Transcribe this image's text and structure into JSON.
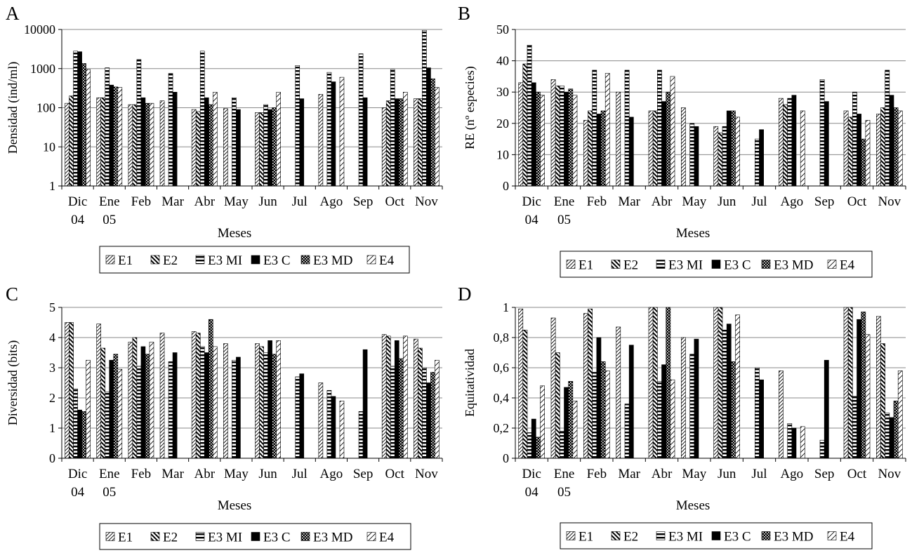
{
  "figure": {
    "legend_entries": [
      "E1",
      "E2",
      "E3 MI",
      "E3 C",
      "E3 MD",
      "E4"
    ],
    "months": [
      "Dic",
      "Ene",
      "Feb",
      "Mar",
      "Abr",
      "May",
      "Jun",
      "Jul",
      "Ago",
      "Sep",
      "Oct",
      "Nov"
    ],
    "month_sublabels": [
      "04",
      "05",
      "",
      "",
      "",
      "",
      "",
      "",
      "",
      "",
      "",
      ""
    ]
  },
  "chart_data": [
    {
      "panel": "A",
      "type": "bar",
      "ylabel": "Densidad (ind/ml)",
      "xlabel": "Meses",
      "yscale": "log",
      "ylim": [
        1,
        10000
      ],
      "yticks": [
        "1",
        "10",
        "100",
        "1000",
        "10000"
      ],
      "categories": [
        "Dic",
        "Ene",
        "Feb",
        "Mar",
        "Abr",
        "May",
        "Jun",
        "Jul",
        "Ago",
        "Sep",
        "Oct",
        "Nov"
      ],
      "grid": true,
      "legend_position": "bottom",
      "series": [
        {
          "name": "E1",
          "values": [
            130,
            180,
            120,
            150,
            90,
            95,
            75,
            null,
            220,
            null,
            100,
            170
          ]
        },
        {
          "name": "E2",
          "values": [
            200,
            180,
            120,
            null,
            80,
            null,
            75,
            null,
            null,
            null,
            150,
            170
          ]
        },
        {
          "name": "E3 MI",
          "values": [
            2800,
            1050,
            1700,
            750,
            2800,
            180,
            120,
            1200,
            800,
            2400,
            950,
            9500
          ]
        },
        {
          "name": "E3 C",
          "values": [
            2700,
            380,
            180,
            250,
            180,
            90,
            90,
            170,
            460,
            180,
            170,
            1050
          ]
        },
        {
          "name": "E3 MD",
          "values": [
            1350,
            340,
            130,
            null,
            120,
            null,
            100,
            null,
            null,
            null,
            170,
            550
          ]
        },
        {
          "name": "E4",
          "values": [
            950,
            330,
            130,
            null,
            250,
            null,
            250,
            null,
            600,
            null,
            250,
            330
          ]
        }
      ]
    },
    {
      "panel": "B",
      "type": "bar",
      "ylabel": "RE (nº especies)",
      "xlabel": "Meses",
      "ylim": [
        0,
        50
      ],
      "yticks": [
        "0",
        "10",
        "20",
        "30",
        "40",
        "50"
      ],
      "categories": [
        "Dic",
        "Ene",
        "Feb",
        "Mar",
        "Abr",
        "May",
        "Jun",
        "Jul",
        "Ago",
        "Sep",
        "Oct",
        "Nov"
      ],
      "grid": true,
      "legend_position": "bottom",
      "series": [
        {
          "name": "E1",
          "values": [
            33,
            34,
            21,
            30,
            24,
            25,
            19,
            null,
            28,
            null,
            24,
            23
          ]
        },
        {
          "name": "E2",
          "values": [
            39,
            32,
            24,
            null,
            24,
            null,
            17,
            null,
            26,
            null,
            22,
            25
          ]
        },
        {
          "name": "E3 MI",
          "values": [
            45,
            32,
            37,
            37,
            37,
            20,
            19,
            15,
            28,
            34,
            30,
            37
          ]
        },
        {
          "name": "E3 C",
          "values": [
            33,
            30,
            23,
            22,
            27,
            19,
            24,
            18,
            29,
            27,
            23,
            29
          ]
        },
        {
          "name": "E3 MD",
          "values": [
            30,
            31,
            24,
            null,
            30,
            null,
            24,
            null,
            null,
            null,
            15,
            25
          ]
        },
        {
          "name": "E4",
          "values": [
            29,
            29,
            36,
            null,
            35,
            null,
            22,
            null,
            24,
            null,
            21,
            24
          ]
        }
      ]
    },
    {
      "panel": "C",
      "type": "bar",
      "ylabel": "Diversidad (bits)",
      "xlabel": "Meses",
      "ylim": [
        0,
        5
      ],
      "yticks": [
        "0",
        "1",
        "2",
        "3",
        "4",
        "5"
      ],
      "categories": [
        "Dic",
        "Ene",
        "Feb",
        "Mar",
        "Abr",
        "May",
        "Jun",
        "Jul",
        "Ago",
        "Sep",
        "Oct",
        "Nov"
      ],
      "grid": true,
      "legend_position": "bottom",
      "series": [
        {
          "name": "E1",
          "values": [
            4.5,
            4.45,
            3.85,
            4.15,
            4.2,
            3.8,
            3.8,
            null,
            2.5,
            null,
            4.1,
            3.95
          ]
        },
        {
          "name": "E2",
          "values": [
            4.5,
            3.65,
            4.0,
            null,
            4.15,
            null,
            3.7,
            null,
            null,
            null,
            4.05,
            3.65
          ]
        },
        {
          "name": "E3 MI",
          "values": [
            2.3,
            2.2,
            3.05,
            3.2,
            3.7,
            3.25,
            3.5,
            2.7,
            2.25,
            1.55,
            3.05,
            3.0
          ]
        },
        {
          "name": "E3 C",
          "values": [
            1.6,
            3.25,
            3.7,
            3.5,
            3.5,
            3.35,
            3.9,
            2.8,
            2.05,
            3.6,
            3.9,
            2.5
          ]
        },
        {
          "name": "E3 MD",
          "values": [
            1.55,
            3.45,
            3.45,
            null,
            4.6,
            null,
            3.45,
            null,
            null,
            null,
            3.3,
            2.85
          ]
        },
        {
          "name": "E4",
          "values": [
            3.25,
            2.95,
            3.85,
            null,
            3.7,
            null,
            3.9,
            null,
            1.9,
            null,
            4.05,
            3.25
          ]
        }
      ]
    },
    {
      "panel": "D",
      "type": "bar",
      "ylabel": "Equitatividad",
      "xlabel": "Meses",
      "ylim": [
        0,
        1
      ],
      "yticks": [
        "0",
        "0,2",
        "0,4",
        "0,6",
        "0,8",
        "1"
      ],
      "categories": [
        "Dic",
        "Ene",
        "Feb",
        "Mar",
        "Abr",
        "May",
        "Jun",
        "Jul",
        "Ago",
        "Sep",
        "Oct",
        "Nov"
      ],
      "grid": true,
      "legend_position": "bottom",
      "series": [
        {
          "name": "E1",
          "values": [
            0.99,
            0.93,
            0.96,
            0.87,
            1.0,
            0.8,
            1.0,
            null,
            0.58,
            null,
            1.0,
            0.94
          ]
        },
        {
          "name": "E2",
          "values": [
            0.85,
            0.7,
            0.99,
            null,
            1.0,
            null,
            1.0,
            null,
            null,
            null,
            1.0,
            0.76
          ]
        },
        {
          "name": "E3 MI",
          "values": [
            0.17,
            0.18,
            0.57,
            0.36,
            0.51,
            0.69,
            0.85,
            0.6,
            0.23,
            0.12,
            0.41,
            0.3
          ]
        },
        {
          "name": "E3 C",
          "values": [
            0.26,
            0.47,
            0.8,
            0.75,
            0.62,
            0.79,
            0.89,
            0.52,
            0.2,
            0.65,
            0.92,
            0.27
          ]
        },
        {
          "name": "E3 MD",
          "values": [
            0.14,
            0.51,
            0.64,
            null,
            1.0,
            null,
            0.64,
            null,
            null,
            null,
            0.97,
            0.38
          ]
        },
        {
          "name": "E4",
          "values": [
            0.48,
            0.38,
            0.58,
            null,
            0.52,
            null,
            0.95,
            null,
            0.21,
            null,
            0.82,
            0.58
          ]
        }
      ]
    }
  ]
}
